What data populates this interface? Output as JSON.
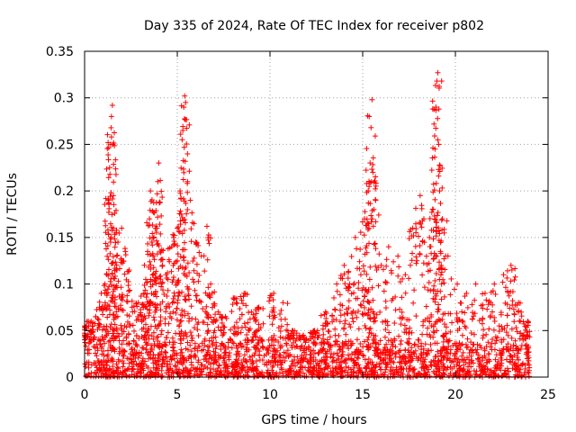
{
  "chart_data": {
    "type": "scatter",
    "title": "Day 335 of 2024, Rate Of TEC Index for receiver p802",
    "xlabel": "GPS time / hours",
    "ylabel": "ROTI / TECUs",
    "xlim": [
      0,
      25
    ],
    "ylim": [
      0,
      0.35
    ],
    "x_ticks": [
      "0",
      "5",
      "10",
      "15",
      "20",
      "25"
    ],
    "y_ticks": [
      "0",
      "0.05",
      "0.1",
      "0.15",
      "0.2",
      "0.25",
      "0.3",
      "0.35"
    ],
    "grid": true,
    "marker": "+",
    "color": "#ff0000",
    "data_x_range_hours": [
      0,
      24
    ],
    "baseline_band": [
      0.0,
      0.04
    ],
    "series": [
      {
        "name": "ROTI",
        "points": [
          {
            "x": 0.1,
            "y": 0.055
          },
          {
            "x": 0.2,
            "y": 0.06
          },
          {
            "x": 0.3,
            "y": 0.05
          },
          {
            "x": 0.6,
            "y": 0.065
          },
          {
            "x": 0.9,
            "y": 0.09
          },
          {
            "x": 1.1,
            "y": 0.1
          },
          {
            "x": 1.3,
            "y": 0.19
          },
          {
            "x": 1.35,
            "y": 0.225
          },
          {
            "x": 1.4,
            "y": 0.25
          },
          {
            "x": 1.45,
            "y": 0.258
          },
          {
            "x": 1.5,
            "y": 0.292
          },
          {
            "x": 1.45,
            "y": 0.28
          },
          {
            "x": 1.55,
            "y": 0.195
          },
          {
            "x": 1.7,
            "y": 0.155
          },
          {
            "x": 1.8,
            "y": 0.145
          },
          {
            "x": 2.0,
            "y": 0.16
          },
          {
            "x": 2.2,
            "y": 0.135
          },
          {
            "x": 2.4,
            "y": 0.115
          },
          {
            "x": 2.9,
            "y": 0.08
          },
          {
            "x": 3.2,
            "y": 0.09
          },
          {
            "x": 3.3,
            "y": 0.105
          },
          {
            "x": 3.4,
            "y": 0.135
          },
          {
            "x": 3.5,
            "y": 0.17
          },
          {
            "x": 3.55,
            "y": 0.2
          },
          {
            "x": 3.7,
            "y": 0.13
          },
          {
            "x": 3.9,
            "y": 0.16
          },
          {
            "x": 3.95,
            "y": 0.21
          },
          {
            "x": 4.0,
            "y": 0.23
          },
          {
            "x": 4.05,
            "y": 0.188
          },
          {
            "x": 4.2,
            "y": 0.12
          },
          {
            "x": 4.5,
            "y": 0.105
          },
          {
            "x": 4.7,
            "y": 0.14
          },
          {
            "x": 4.8,
            "y": 0.15
          },
          {
            "x": 5.0,
            "y": 0.16
          },
          {
            "x": 5.15,
            "y": 0.2
          },
          {
            "x": 5.3,
            "y": 0.265
          },
          {
            "x": 5.35,
            "y": 0.29
          },
          {
            "x": 5.4,
            "y": 0.302
          },
          {
            "x": 5.45,
            "y": 0.295
          },
          {
            "x": 5.55,
            "y": 0.21
          },
          {
            "x": 5.7,
            "y": 0.19
          },
          {
            "x": 5.9,
            "y": 0.165
          },
          {
            "x": 6.0,
            "y": 0.145
          },
          {
            "x": 6.3,
            "y": 0.13
          },
          {
            "x": 6.6,
            "y": 0.162
          },
          {
            "x": 6.8,
            "y": 0.1
          },
          {
            "x": 7.2,
            "y": 0.07
          },
          {
            "x": 7.6,
            "y": 0.065
          },
          {
            "x": 8.1,
            "y": 0.085
          },
          {
            "x": 8.6,
            "y": 0.09
          },
          {
            "x": 9.0,
            "y": 0.07
          },
          {
            "x": 9.4,
            "y": 0.075
          },
          {
            "x": 10.2,
            "y": 0.09
          },
          {
            "x": 10.7,
            "y": 0.08
          },
          {
            "x": 11.2,
            "y": 0.05
          },
          {
            "x": 11.8,
            "y": 0.045
          },
          {
            "x": 12.4,
            "y": 0.05
          },
          {
            "x": 13.0,
            "y": 0.07
          },
          {
            "x": 13.6,
            "y": 0.1
          },
          {
            "x": 14.0,
            "y": 0.12
          },
          {
            "x": 14.3,
            "y": 0.1
          },
          {
            "x": 14.6,
            "y": 0.15
          },
          {
            "x": 14.9,
            "y": 0.11
          },
          {
            "x": 15.1,
            "y": 0.17
          },
          {
            "x": 15.3,
            "y": 0.2
          },
          {
            "x": 15.4,
            "y": 0.23
          },
          {
            "x": 15.45,
            "y": 0.268
          },
          {
            "x": 15.5,
            "y": 0.298
          },
          {
            "x": 15.55,
            "y": 0.22
          },
          {
            "x": 15.7,
            "y": 0.19
          },
          {
            "x": 16.0,
            "y": 0.12
          },
          {
            "x": 16.4,
            "y": 0.14
          },
          {
            "x": 16.9,
            "y": 0.13
          },
          {
            "x": 17.3,
            "y": 0.11
          },
          {
            "x": 17.7,
            "y": 0.16
          },
          {
            "x": 18.1,
            "y": 0.195
          },
          {
            "x": 18.3,
            "y": 0.17
          },
          {
            "x": 18.6,
            "y": 0.15
          },
          {
            "x": 18.8,
            "y": 0.18
          },
          {
            "x": 18.9,
            "y": 0.245
          },
          {
            "x": 18.95,
            "y": 0.29
          },
          {
            "x": 19.0,
            "y": 0.318
          },
          {
            "x": 19.05,
            "y": 0.327
          },
          {
            "x": 19.1,
            "y": 0.25
          },
          {
            "x": 19.15,
            "y": 0.2
          },
          {
            "x": 19.3,
            "y": 0.17
          },
          {
            "x": 19.6,
            "y": 0.13
          },
          {
            "x": 20.1,
            "y": 0.1
          },
          {
            "x": 20.6,
            "y": 0.09
          },
          {
            "x": 21.1,
            "y": 0.1
          },
          {
            "x": 21.6,
            "y": 0.09
          },
          {
            "x": 22.1,
            "y": 0.1
          },
          {
            "x": 22.6,
            "y": 0.11
          },
          {
            "x": 23.0,
            "y": 0.12
          },
          {
            "x": 23.4,
            "y": 0.08
          },
          {
            "x": 23.9,
            "y": 0.06
          }
        ]
      }
    ]
  }
}
